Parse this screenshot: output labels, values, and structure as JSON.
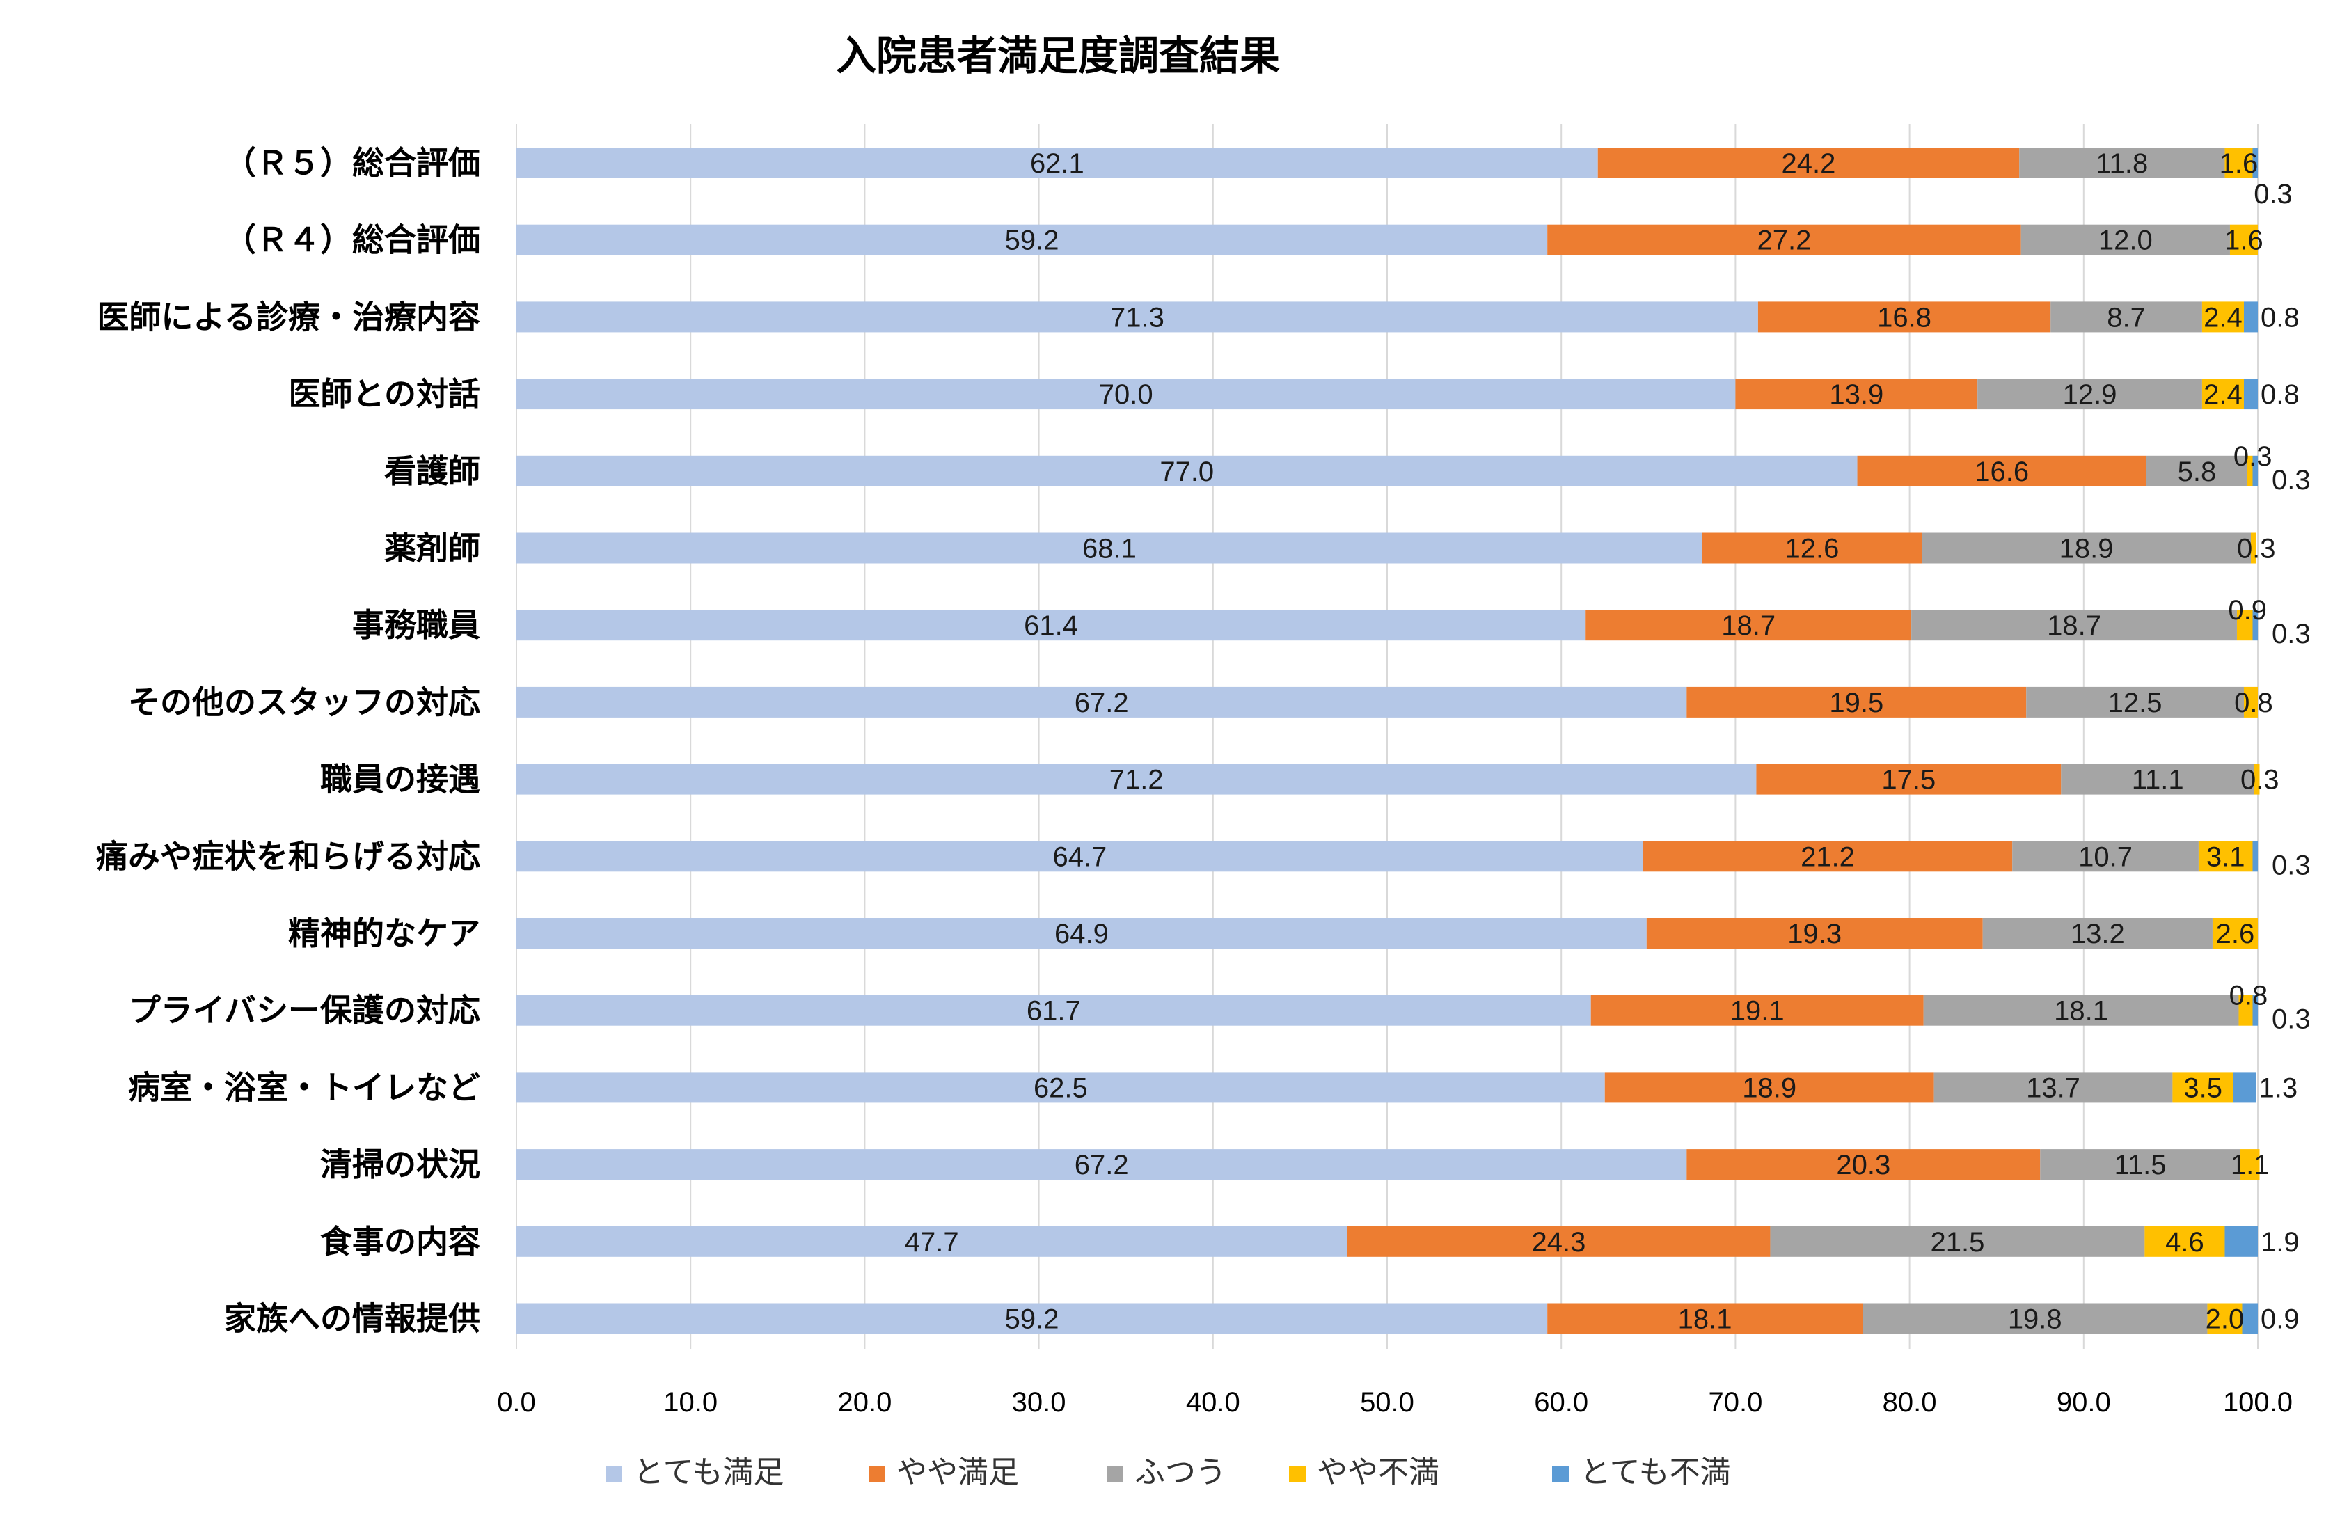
{
  "chart_data": {
    "type": "bar",
    "orientation": "horizontal",
    "stacked": true,
    "title": "入院患者満足度調査結果",
    "xlabel": "",
    "ylabel": "",
    "xlim": [
      0,
      100
    ],
    "xticks": [
      "0.0",
      "10.0",
      "20.0",
      "30.0",
      "40.0",
      "50.0",
      "60.0",
      "70.0",
      "80.0",
      "90.0",
      "100.0"
    ],
    "grid": true,
    "legend_position": "bottom",
    "categories": [
      "（Ｒ５）総合評価",
      "（Ｒ４）総合評価",
      "医師による診療・治療内容",
      "医師との対話",
      "看護師",
      "薬剤師",
      "事務職員",
      "その他のスタッフの対応",
      "職員の接遇",
      "痛みや症状を和らげる対応",
      "精神的なケア",
      "プライバシー保護の対応",
      "病室・浴室・トイレなど",
      "清掃の状況",
      "食事の内容",
      "家族への情報提供"
    ],
    "series": [
      {
        "name": "とても満足",
        "color": "#b4c7e7",
        "values": [
          62.1,
          59.2,
          71.3,
          70.0,
          77.0,
          68.1,
          61.4,
          67.2,
          71.2,
          64.7,
          64.9,
          61.7,
          62.5,
          67.2,
          47.7,
          59.2
        ]
      },
      {
        "name": "やや満足",
        "color": "#ed7d31",
        "values": [
          24.2,
          27.2,
          16.8,
          13.9,
          16.6,
          12.6,
          18.7,
          19.5,
          17.5,
          21.2,
          19.3,
          19.1,
          18.9,
          20.3,
          24.3,
          18.1
        ]
      },
      {
        "name": "ふつう",
        "color": "#a5a5a5",
        "values": [
          11.8,
          12.0,
          8.7,
          12.9,
          5.8,
          18.9,
          18.7,
          12.5,
          11.1,
          10.7,
          13.2,
          18.1,
          13.7,
          11.5,
          21.5,
          19.8
        ]
      },
      {
        "name": "やや不満",
        "color": "#ffc000",
        "values": [
          1.6,
          1.6,
          2.4,
          2.4,
          0.3,
          0.3,
          0.9,
          0.8,
          0.3,
          3.1,
          2.6,
          0.8,
          3.5,
          1.1,
          4.6,
          2.0
        ]
      },
      {
        "name": "とても不満",
        "color": "#5b9bd5",
        "values": [
          0.3,
          null,
          0.8,
          0.8,
          0.3,
          null,
          0.3,
          null,
          null,
          0.3,
          null,
          0.3,
          1.3,
          null,
          1.9,
          0.9
        ]
      }
    ]
  }
}
